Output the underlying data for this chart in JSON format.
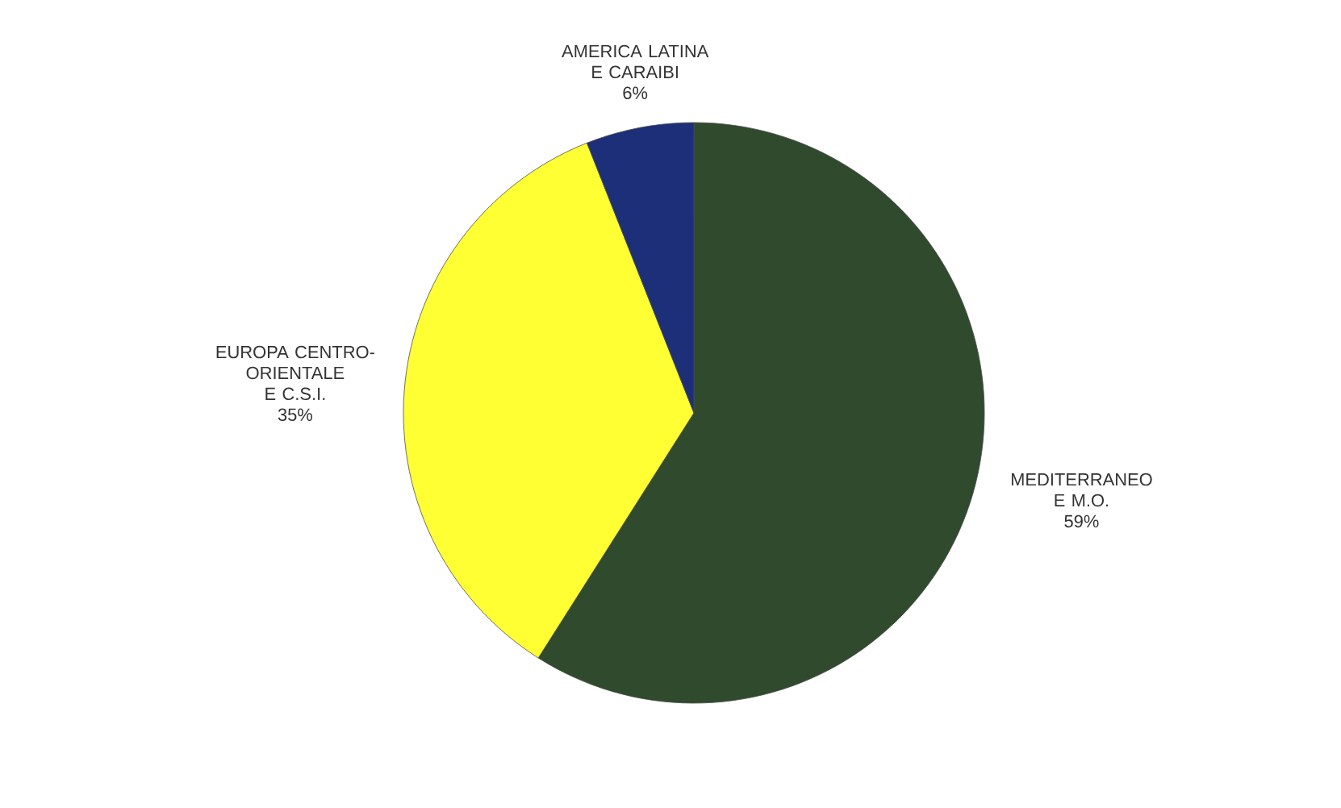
{
  "chart_data": {
    "type": "pie",
    "categories": [
      "MEDITERRANEO E M.O.",
      "EUROPA CENTRO-ORIENTALE E C.S.I.",
      "AMERICA LATINA E CARAIBI"
    ],
    "values": [
      59,
      35,
      6
    ],
    "colors": [
      "#2f4a2c",
      "#ffff33",
      "#1c2f78"
    ],
    "value_labels": [
      "59%",
      "35%",
      "6%"
    ]
  }
}
